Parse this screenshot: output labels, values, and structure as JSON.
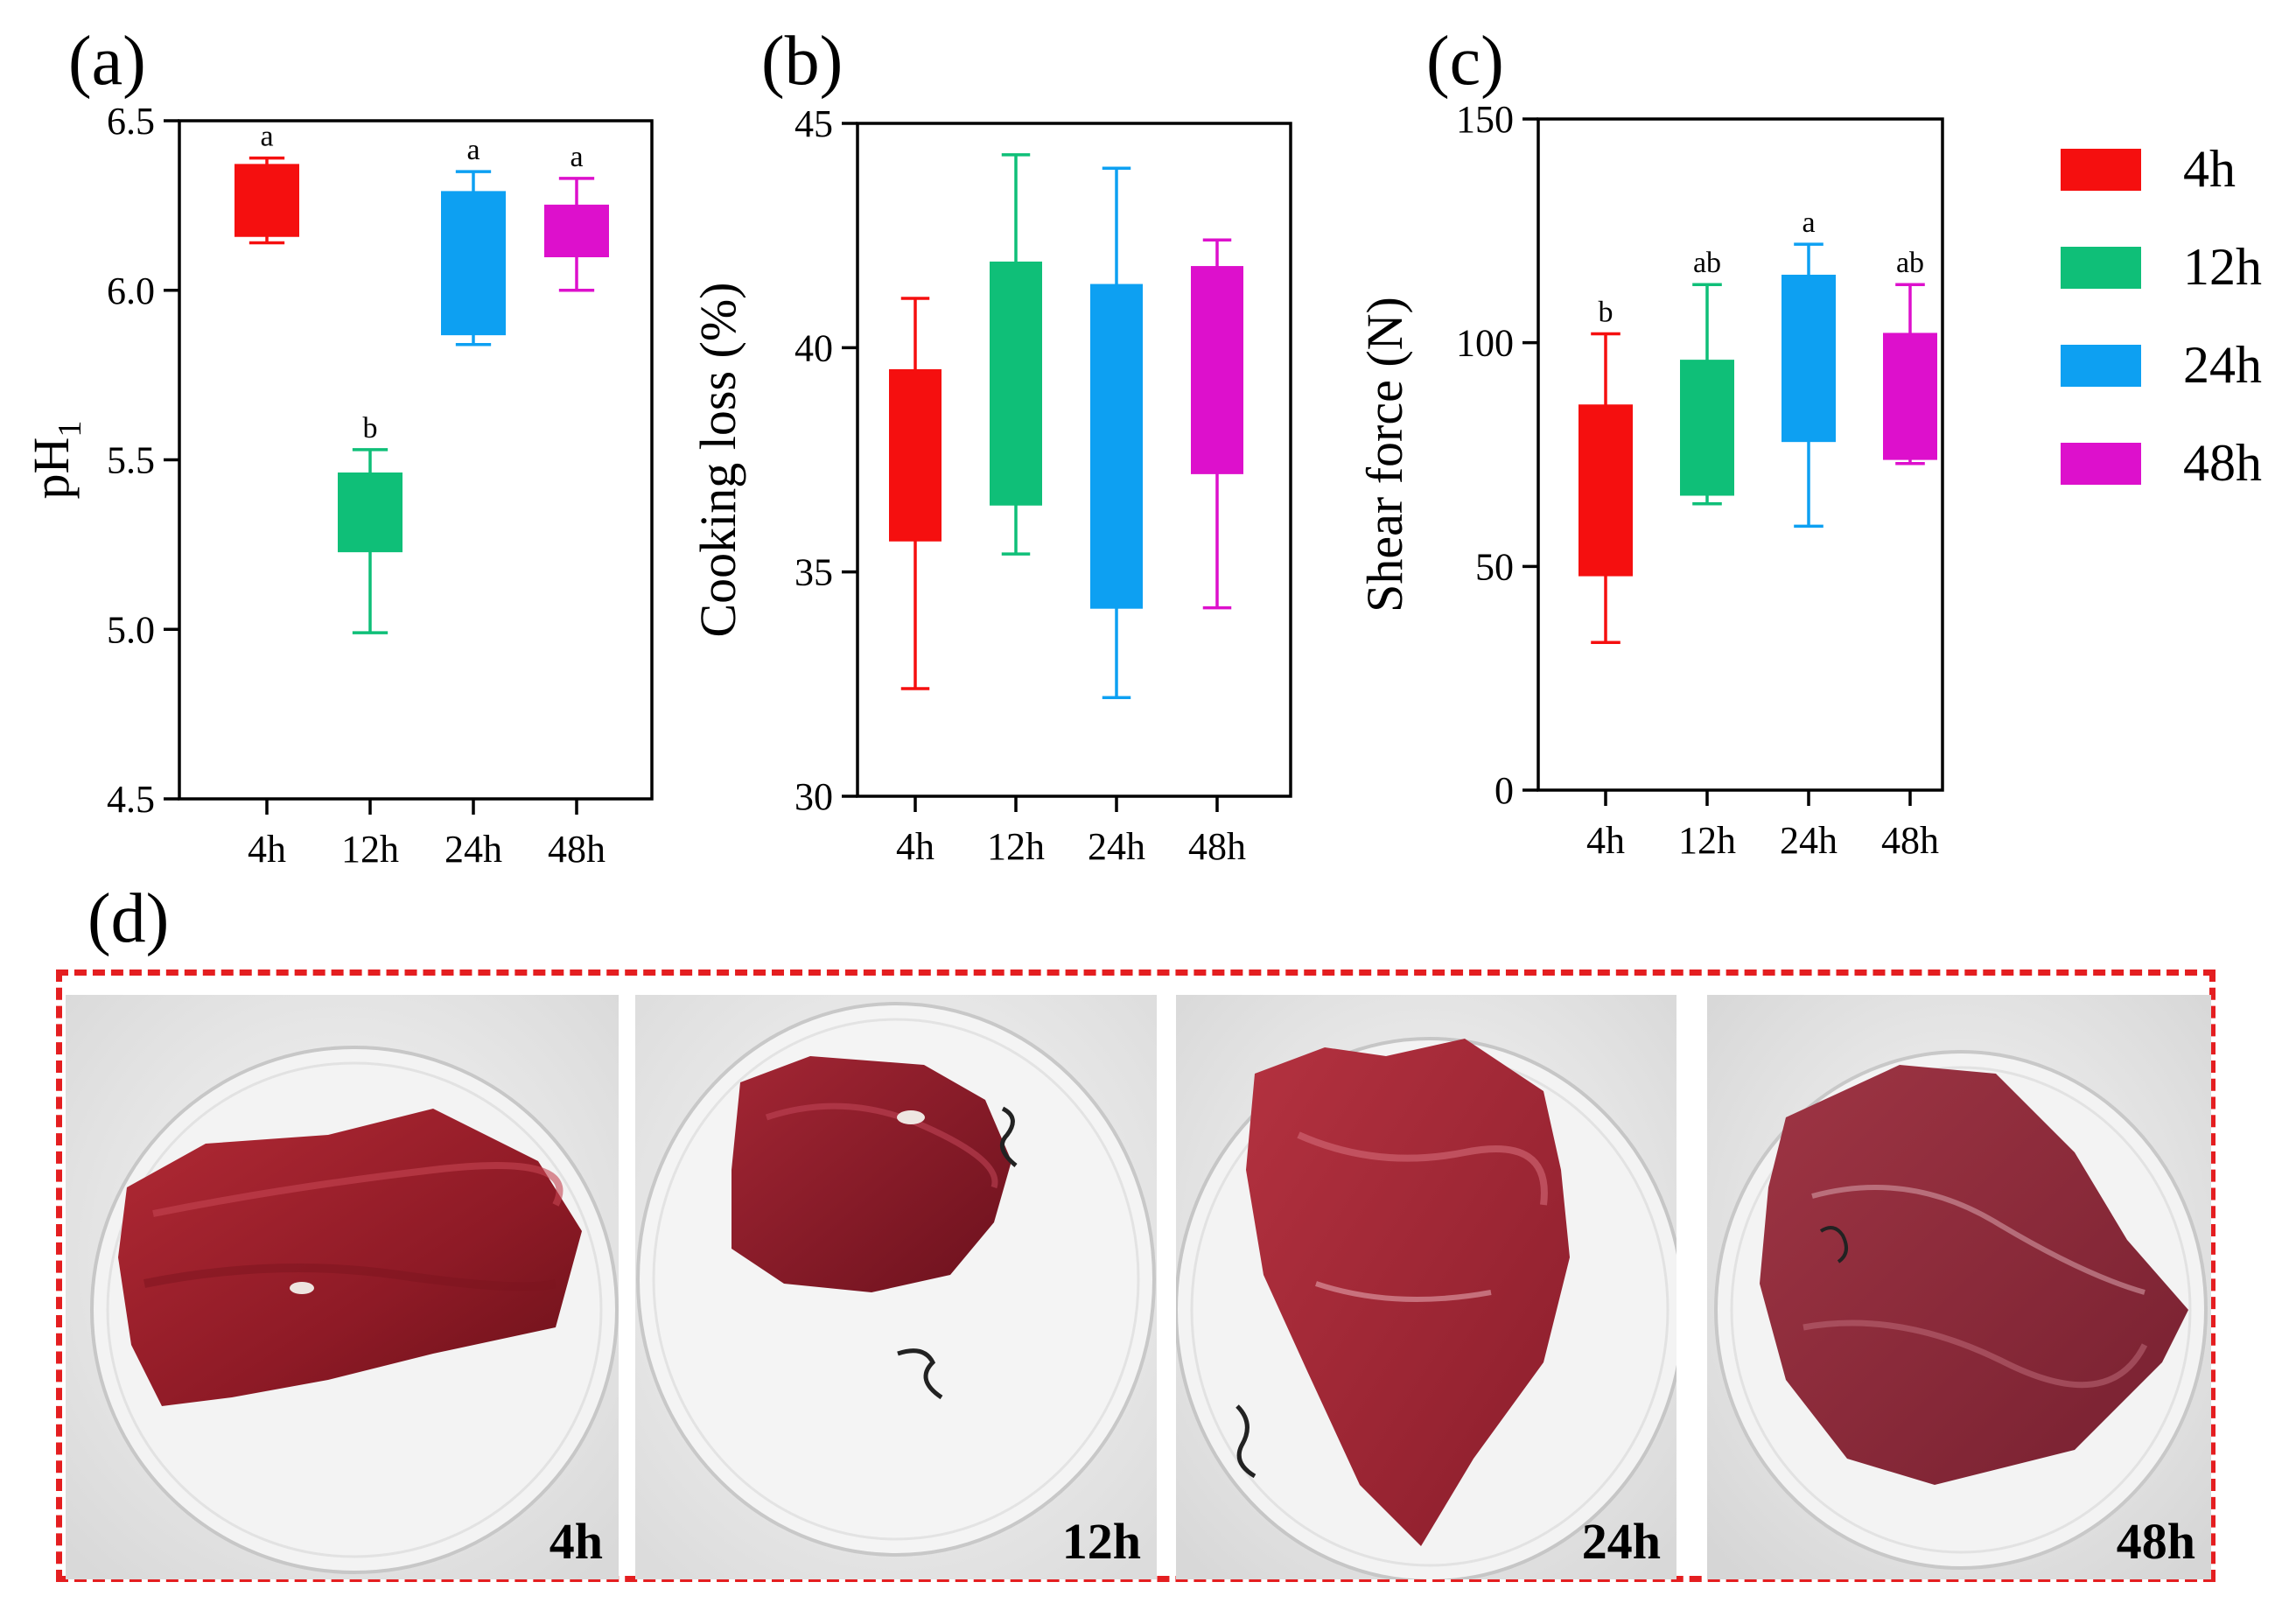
{
  "figure": {
    "panel_letters": [
      "(a)",
      "(b)",
      "(c)",
      "(d)"
    ]
  },
  "colors": {
    "4h": "#f50f0f",
    "12h": "#0fbf78",
    "24h": "#0da0f2",
    "48h": "#dd10cc",
    "frame": "#e41e20"
  },
  "legend": {
    "items": [
      {
        "label": "4h",
        "color": "#f50f0f"
      },
      {
        "label": "12h",
        "color": "#0fbf78"
      },
      {
        "label": "24h",
        "color": "#0da0f2"
      },
      {
        "label": "48h",
        "color": "#dd10cc"
      }
    ]
  },
  "chart_data": [
    {
      "id": "a",
      "type": "box",
      "title": "",
      "xlabel": "",
      "ylabel": "pH1",
      "ylabel_main": "pH",
      "ylabel_sub": "1",
      "ylim": [
        4.5,
        6.5
      ],
      "yticks": [
        4.5,
        5.0,
        5.5,
        6.0,
        6.5
      ],
      "ytick_labels": [
        "4.5",
        "5.0",
        "5.5",
        "6.0",
        "6.5"
      ],
      "frame": "box",
      "categories": [
        "4h",
        "12h",
        "24h",
        "48h"
      ],
      "boxes": [
        {
          "min": 6.14,
          "q1": 6.16,
          "q3": 6.37,
          "max": 6.39,
          "letter": "a"
        },
        {
          "min": 4.99,
          "q1": 5.23,
          "q3": 5.46,
          "max": 5.53,
          "letter": "b"
        },
        {
          "min": 5.84,
          "q1": 5.87,
          "q3": 6.29,
          "max": 6.35,
          "letter": "a"
        },
        {
          "min": 6.0,
          "q1": 6.1,
          "q3": 6.25,
          "max": 6.33,
          "letter": "a"
        }
      ]
    },
    {
      "id": "b",
      "type": "box",
      "title": "",
      "xlabel": "",
      "ylabel": "Cooking loss (%)",
      "ylim": [
        30,
        45
      ],
      "yticks": [
        30,
        35,
        40,
        45
      ],
      "ytick_labels": [
        "30",
        "35",
        "40",
        "45"
      ],
      "frame": "box",
      "categories": [
        "4h",
        "12h",
        "24h",
        "48h"
      ],
      "boxes": [
        {
          "min": 32.4,
          "q1": 35.7,
          "q3": 39.5,
          "max": 41.1,
          "letter": ""
        },
        {
          "min": 35.4,
          "q1": 36.5,
          "q3": 41.9,
          "max": 44.3,
          "letter": ""
        },
        {
          "min": 32.2,
          "q1": 34.2,
          "q3": 41.4,
          "max": 44.0,
          "letter": ""
        },
        {
          "min": 34.2,
          "q1": 37.2,
          "q3": 41.8,
          "max": 42.4,
          "letter": ""
        }
      ]
    },
    {
      "id": "c",
      "type": "box",
      "title": "",
      "xlabel": "",
      "ylabel": "Shear force (N)",
      "ylim": [
        0,
        150
      ],
      "yticks": [
        0,
        50,
        100,
        150
      ],
      "ytick_labels": [
        "0",
        "50",
        "100",
        "150"
      ],
      "frame": "box",
      "categories": [
        "4h",
        "12h",
        "24h",
        "48h"
      ],
      "boxes": [
        {
          "min": 33,
          "q1": 48,
          "q3": 86,
          "max": 102,
          "letter": "b"
        },
        {
          "min": 64,
          "q1": 66,
          "q3": 96,
          "max": 113,
          "letter": "ab"
        },
        {
          "min": 59,
          "q1": 78,
          "q3": 115,
          "max": 122,
          "letter": "a"
        },
        {
          "min": 73,
          "q1": 74,
          "q3": 102,
          "max": 113,
          "letter": "ab"
        }
      ]
    }
  ],
  "photos": {
    "labels": [
      "4h",
      "12h",
      "24h",
      "48h"
    ]
  }
}
